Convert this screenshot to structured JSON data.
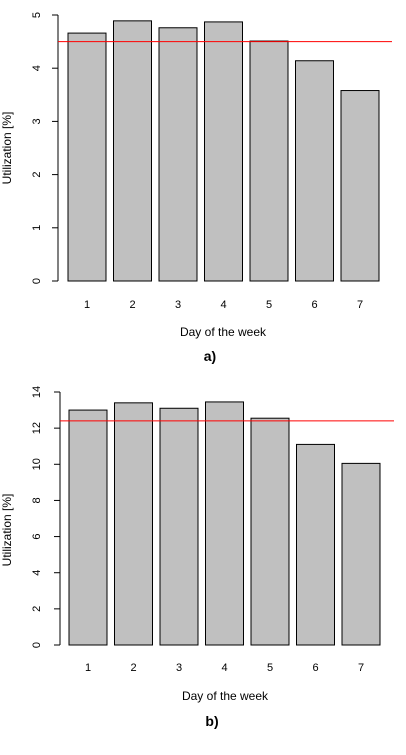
{
  "chart_data": [
    {
      "type": "bar",
      "panel_label": "a)",
      "categories": [
        "1",
        "2",
        "3",
        "4",
        "5",
        "6",
        "7"
      ],
      "values": [
        4.66,
        4.89,
        4.76,
        4.87,
        4.51,
        4.14,
        3.58
      ],
      "reference_line": 4.5,
      "xlabel": "Day of the week",
      "ylabel": "Utilization [%]",
      "ylim": [
        0,
        5
      ],
      "yticks": [
        0,
        1,
        2,
        3,
        4,
        5
      ],
      "bar_color": "#c0c0c0",
      "line_color": "#ff0000",
      "grid": false
    },
    {
      "type": "bar",
      "panel_label": "b)",
      "categories": [
        "1",
        "2",
        "3",
        "4",
        "5",
        "6",
        "7"
      ],
      "values": [
        13.0,
        13.4,
        13.1,
        13.45,
        12.55,
        11.1,
        10.05
      ],
      "reference_line": 12.4,
      "xlabel": "Day of the week",
      "ylabel": "Utilization [%]",
      "ylim": [
        0,
        14
      ],
      "yticks": [
        0,
        2,
        4,
        6,
        8,
        10,
        12,
        14
      ],
      "bar_color": "#c0c0c0",
      "line_color": "#ff0000",
      "grid": false
    }
  ]
}
